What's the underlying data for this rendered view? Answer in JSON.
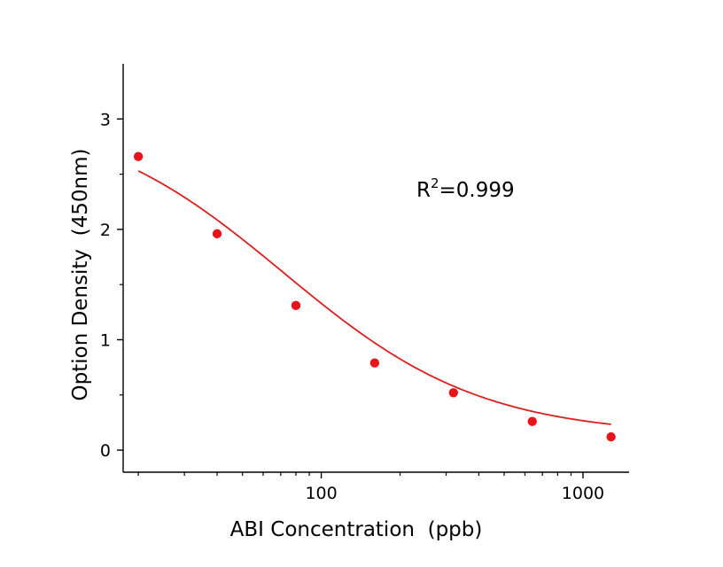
{
  "chart_data": {
    "type": "scatter",
    "title": "",
    "xlabel": "ABI Concentration  (ppb)",
    "ylabel": "Option Density  (450nm)",
    "xscale": "log",
    "xlim": [
      17.5,
      1500
    ],
    "ylim": [
      -0.2,
      3.5
    ],
    "xticks": [
      {
        "value": 100,
        "label": "100"
      },
      {
        "value": 1000,
        "label": "1000"
      }
    ],
    "yticks": [
      {
        "value": 0,
        "label": "0"
      },
      {
        "value": 1,
        "label": "1"
      },
      {
        "value": 2,
        "label": "2"
      },
      {
        "value": 3,
        "label": "3"
      }
    ],
    "grid": false,
    "legend": "none",
    "colors": {
      "points": "#e8141b",
      "fit": "#d9201f",
      "axis": "#000000"
    },
    "series": [
      {
        "kind": "points",
        "x": [
          20,
          40,
          80,
          160,
          320,
          640,
          1280
        ],
        "y": [
          2.66,
          1.96,
          1.31,
          0.79,
          0.52,
          0.26,
          0.12
        ]
      },
      {
        "kind": "fit",
        "model": "4PL",
        "params": {
          "top": 3.08,
          "bottom": 0.13,
          "ec50": 72,
          "hill": 1.15
        },
        "x_range": [
          20,
          1280
        ]
      }
    ],
    "annotations": [
      {
        "base": "R",
        "sup": "2",
        "rest": "=0.999"
      }
    ]
  }
}
